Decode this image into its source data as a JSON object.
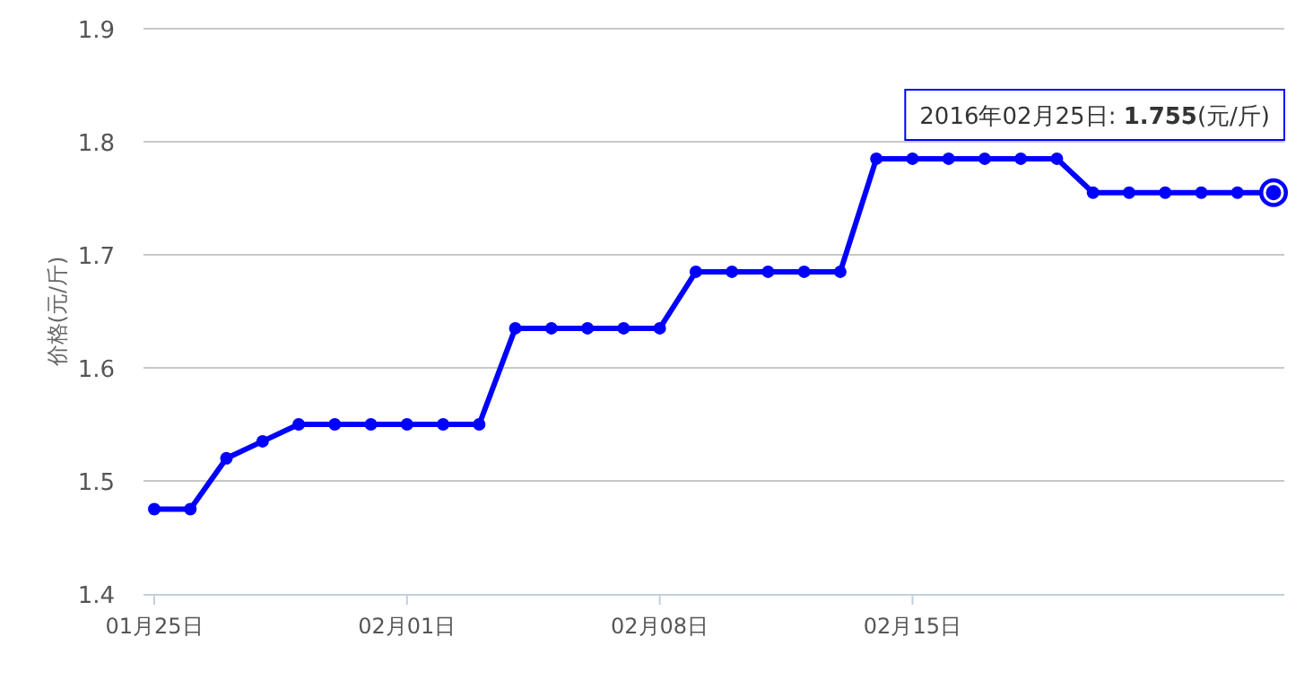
{
  "chart_data": {
    "type": "line",
    "ylabel": "价格(元/斤)",
    "categories": [
      "01月25日",
      null,
      null,
      null,
      null,
      null,
      null,
      "02月01日",
      null,
      null,
      null,
      null,
      null,
      null,
      "02月08日",
      null,
      null,
      null,
      null,
      null,
      null,
      "02月15日",
      null,
      null,
      null,
      null,
      null,
      null,
      null,
      null,
      null,
      null
    ],
    "series": [
      {
        "color": "#0000ff",
        "values": [
          1.475,
          1.475,
          1.52,
          1.535,
          1.55,
          1.55,
          1.55,
          1.55,
          1.55,
          1.55,
          1.635,
          1.635,
          1.635,
          1.635,
          1.635,
          1.685,
          1.685,
          1.685,
          1.685,
          1.685,
          1.785,
          1.785,
          1.785,
          1.785,
          1.785,
          1.785,
          1.755,
          1.755,
          1.755,
          1.755,
          1.755,
          1.755
        ]
      }
    ],
    "ylim": [
      1.4,
      1.9
    ],
    "yticks": [
      1.4,
      1.5,
      1.6,
      1.7,
      1.8,
      1.9
    ],
    "grid": "y",
    "marker": "circle",
    "line_style": "solid",
    "annotations": [
      "2016年02月25日: **1.755**(元/斤)"
    ]
  }
}
